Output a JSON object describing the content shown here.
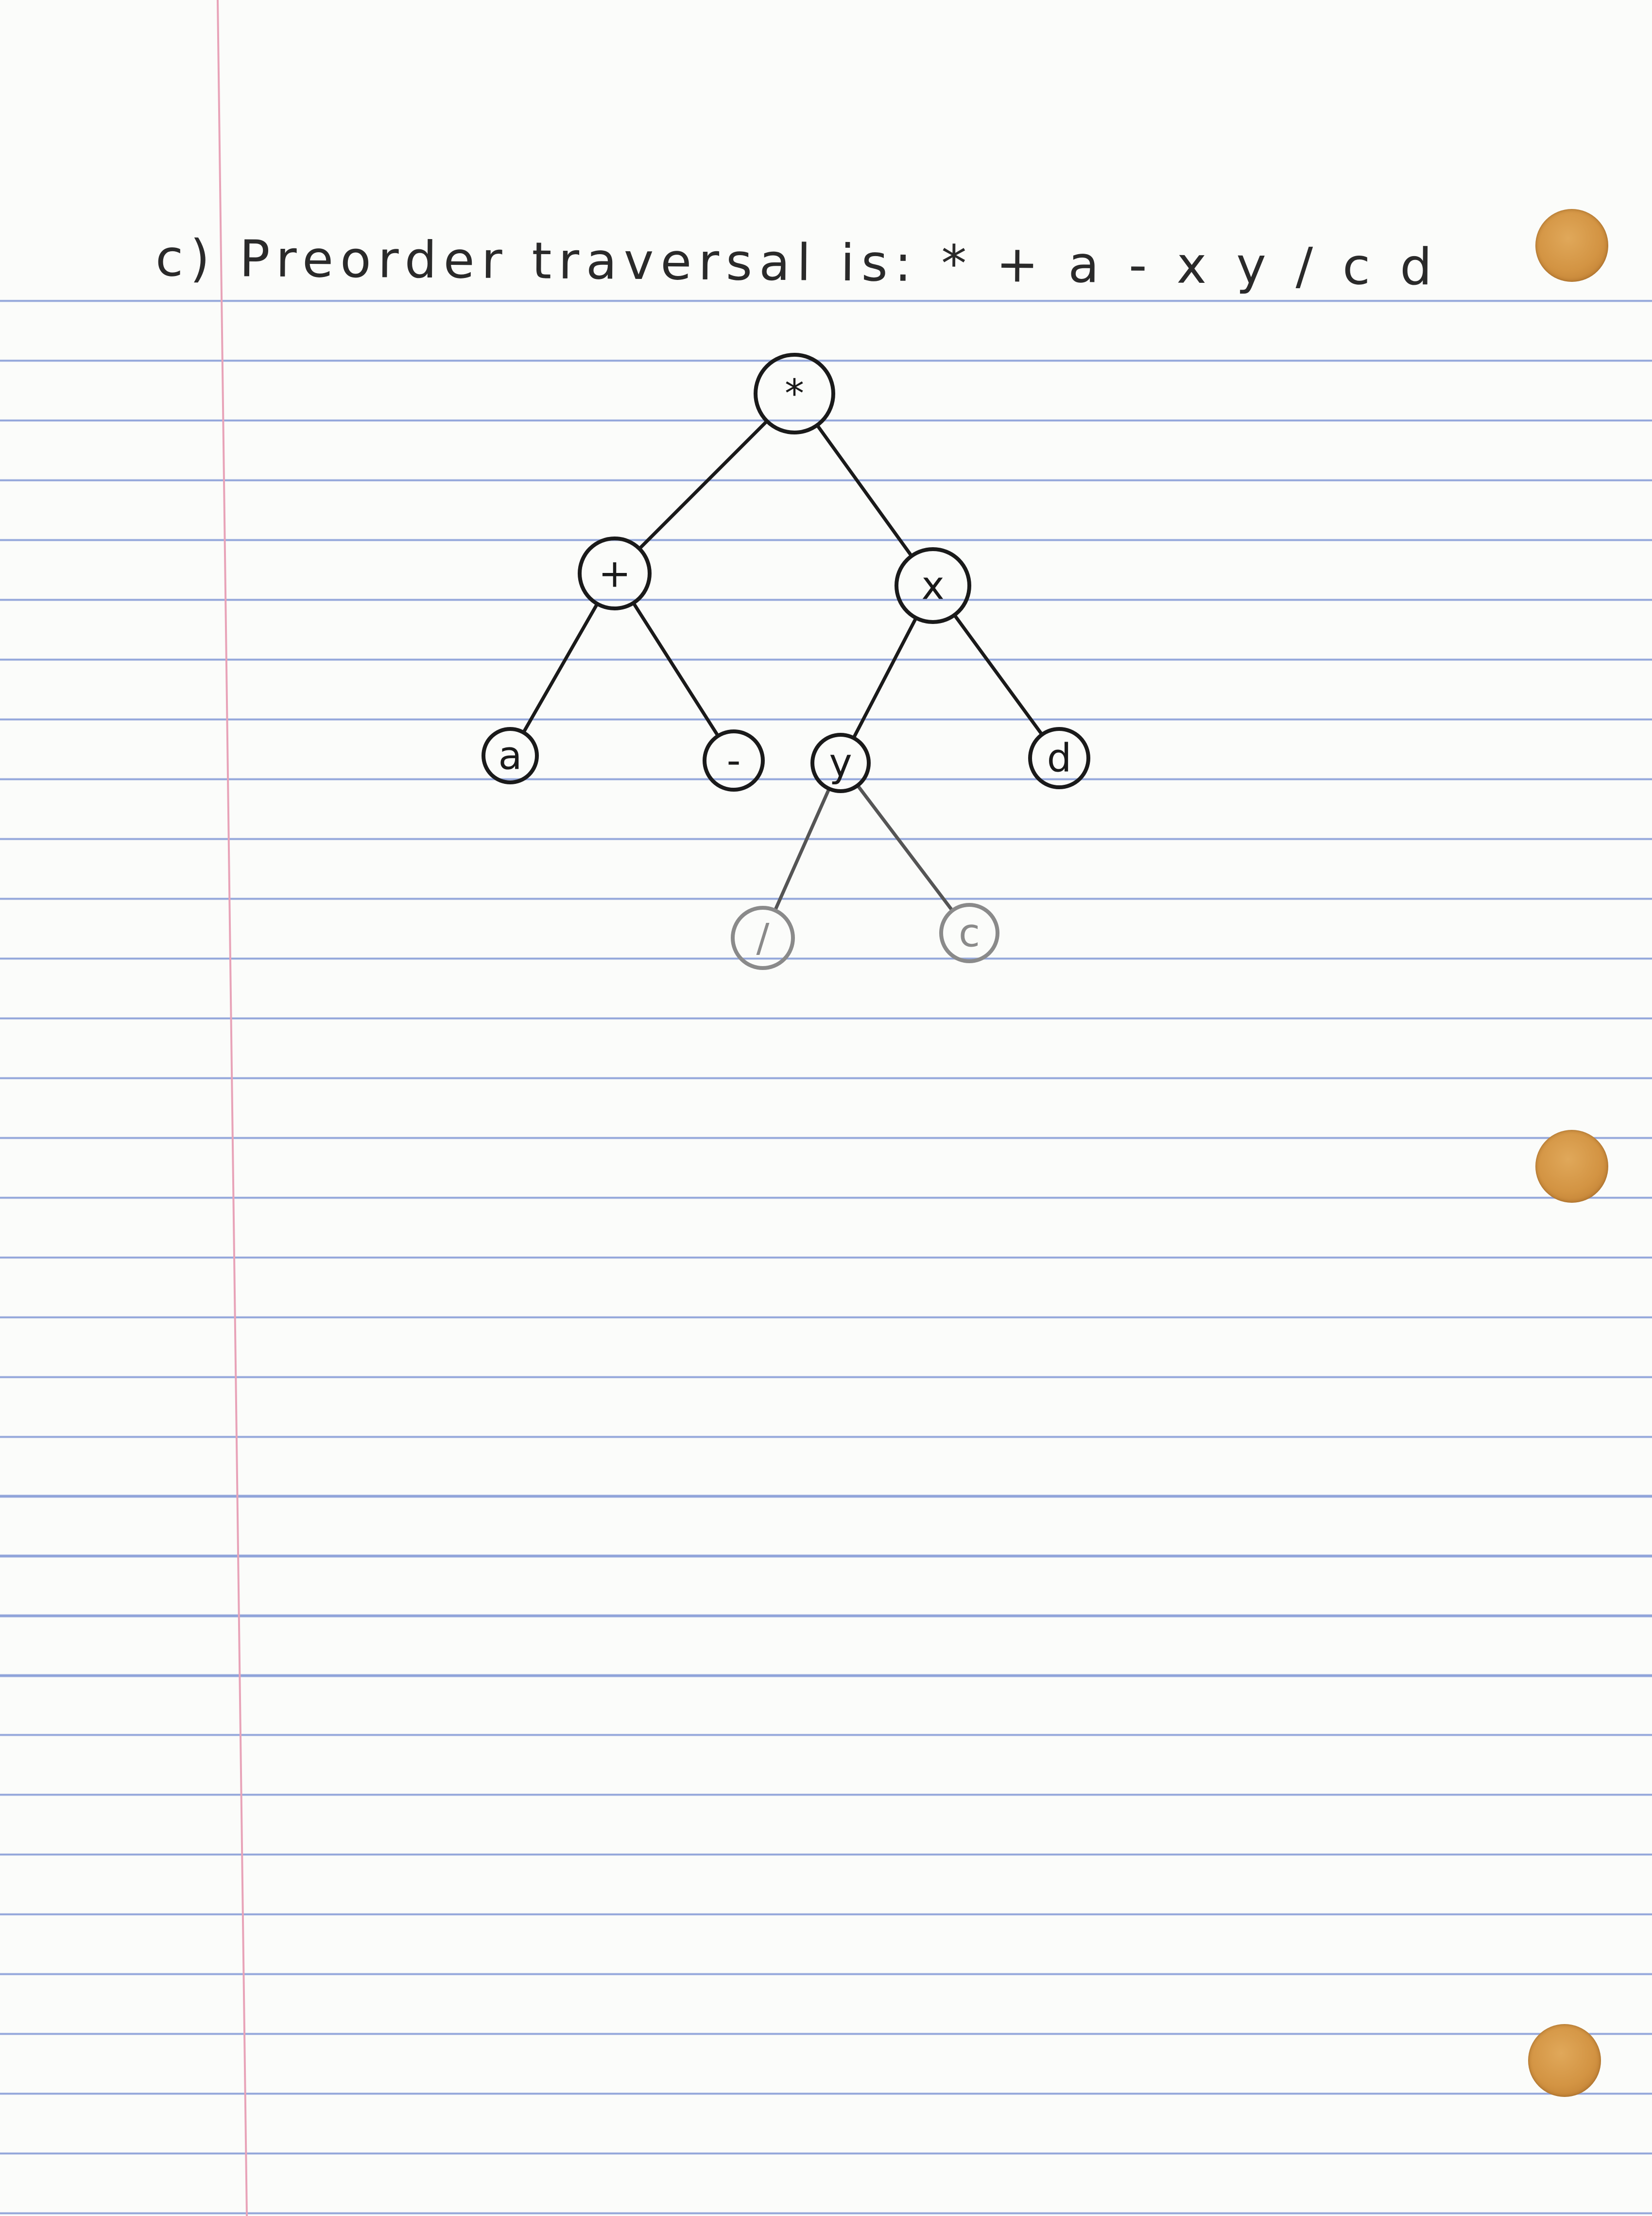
{
  "heading": "c) Preorder traversal is: * + a - x y / c d",
  "tree": {
    "nodes": [
      {
        "id": "star",
        "label": "*",
        "faint": false
      },
      {
        "id": "plus",
        "label": "+",
        "faint": false
      },
      {
        "id": "x",
        "label": "x",
        "faint": false
      },
      {
        "id": "a",
        "label": "a",
        "faint": false
      },
      {
        "id": "minus",
        "label": "-",
        "faint": false
      },
      {
        "id": "y",
        "label": "y",
        "faint": false
      },
      {
        "id": "d",
        "label": "d",
        "faint": false
      },
      {
        "id": "slash",
        "label": "/",
        "faint": true
      },
      {
        "id": "c",
        "label": "c",
        "faint": true
      }
    ],
    "edges": [
      [
        "star",
        "plus"
      ],
      [
        "star",
        "x"
      ],
      [
        "plus",
        "a"
      ],
      [
        "plus",
        "minus"
      ],
      [
        "x",
        "y"
      ],
      [
        "x",
        "d"
      ],
      [
        "y",
        "slash"
      ],
      [
        "y",
        "c"
      ]
    ]
  }
}
